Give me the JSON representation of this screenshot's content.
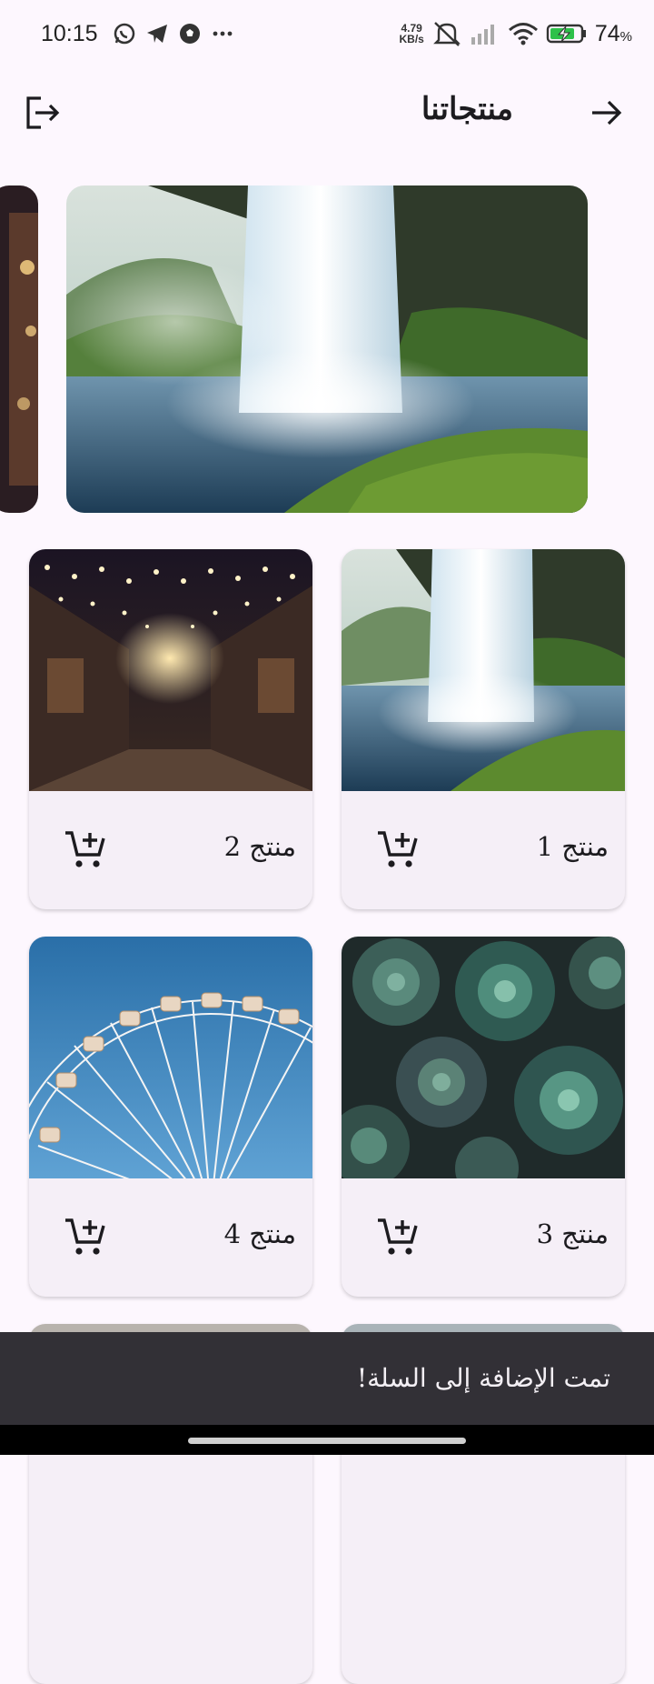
{
  "status": {
    "time": "10:15",
    "net_speed_value": "4.79",
    "net_speed_unit": "KB/s",
    "battery": "74",
    "battery_unit": "%",
    "icons": [
      "whatsapp-icon",
      "telegram-icon",
      "soccer-icon",
      "more-icon",
      "mute-icon",
      "signal-icon",
      "wifi-icon",
      "battery-charging-icon"
    ]
  },
  "appbar": {
    "title": "منتجاتنا",
    "back_icon": "arrow-right-icon",
    "logout_icon": "logout-icon"
  },
  "carousel": {
    "slides": [
      "waterfall",
      "street-lights"
    ]
  },
  "products": [
    {
      "name": "منتج 1",
      "image": "waterfall"
    },
    {
      "name": "منتج 2",
      "image": "street-lights"
    },
    {
      "name": "منتج 3",
      "image": "succulents"
    },
    {
      "name": "منتج 4",
      "image": "ferris-wheel"
    }
  ],
  "snackbar": {
    "message": "تمت الإضافة إلى السلة!"
  },
  "colors": {
    "background": "#fdf7fe",
    "card": "#f5eff7",
    "snackbar": "#323036"
  }
}
